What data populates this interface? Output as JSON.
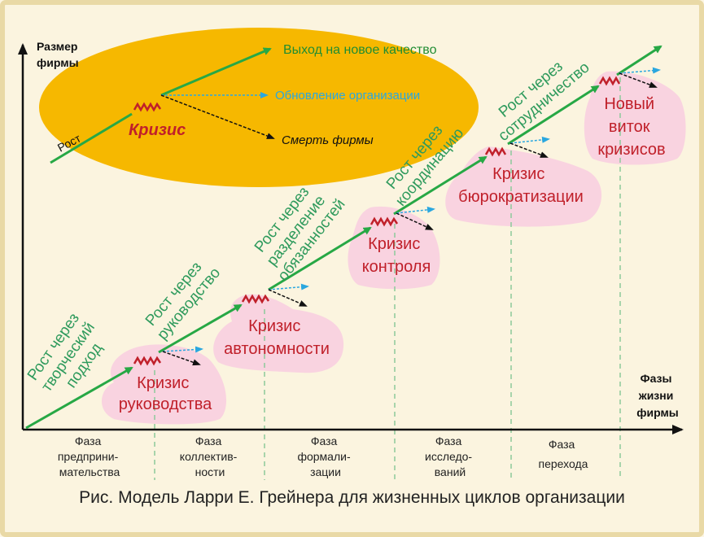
{
  "axes": {
    "y_label": [
      "Размер",
      "фирмы"
    ],
    "x_label": [
      "Фазы",
      "жизни",
      "фирмы"
    ]
  },
  "inset": {
    "growth_label": "Рост",
    "crisis_label": "Кризис",
    "paths": {
      "new_quality": "Выход на новое качество",
      "renewal": "Обновление организации",
      "death": "Смерть фирмы"
    }
  },
  "growth_stages": [
    [
      "Рост через",
      "творческий",
      "подход"
    ],
    [
      "Рост через",
      "руководство"
    ],
    [
      "Рост через",
      "разделение",
      "обязанностей"
    ],
    [
      "Рост через",
      "координацию"
    ],
    [
      "Рост через",
      "сотрудничество"
    ]
  ],
  "crises": [
    [
      "Кризис",
      "руководства"
    ],
    [
      "Кризис",
      "автономности"
    ],
    [
      "Кризис",
      "контроля"
    ],
    [
      "Кризис",
      "бюрократизации"
    ],
    [
      "Новый",
      "виток",
      "кризисов"
    ]
  ],
  "phases": [
    [
      "Фаза",
      "предприни-",
      "мательства"
    ],
    [
      "Фаза",
      "коллектив-",
      "ности"
    ],
    [
      "Фаза",
      "формали-",
      "зации"
    ],
    [
      "Фаза",
      "исследо-",
      "ваний"
    ],
    [
      "Фаза",
      "перехода"
    ]
  ],
  "caption": "Рис. Модель Ларри Е. Грейнера для жизненных циклов организации",
  "colors": {
    "growth_arrow": "#27a845",
    "growth_text": "#2e9a5c",
    "crisis_text": "#c0202a",
    "crisis_blob": "#f8cfe0",
    "inset_fill": "#f6b800",
    "renewal_arrow": "#2aa7df",
    "frame": "#e9d9a6"
  }
}
